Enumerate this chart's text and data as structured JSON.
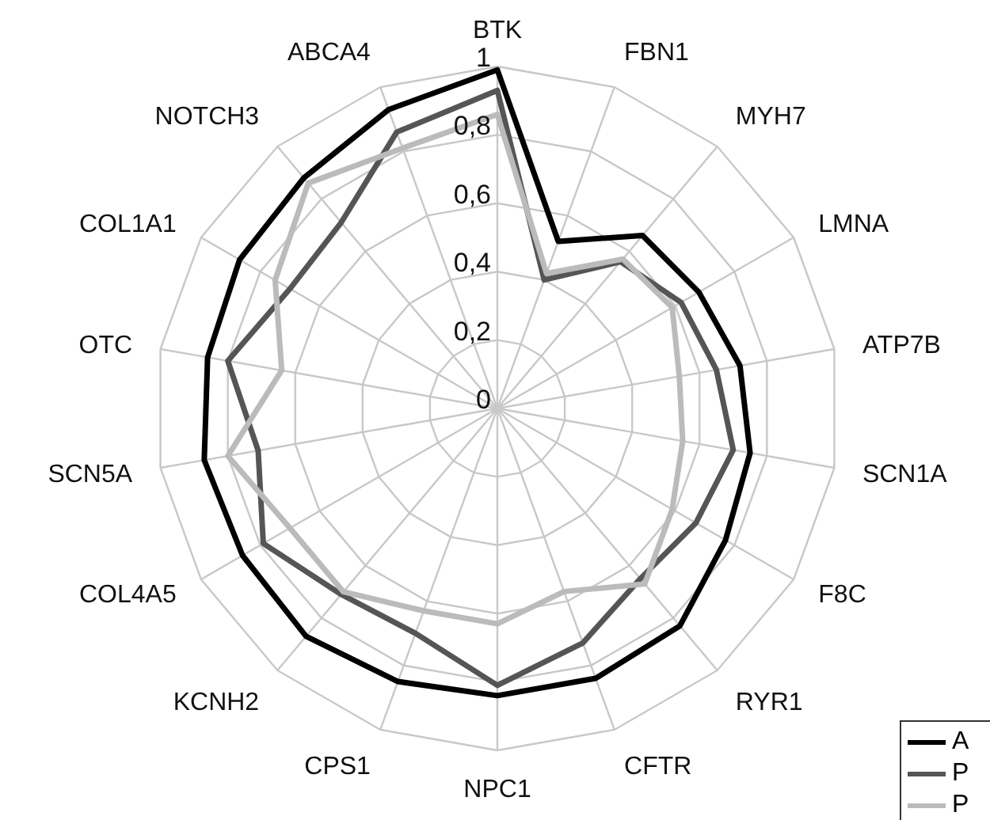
{
  "chart_data": {
    "type": "radar",
    "categories": [
      "BTK",
      "FBN1",
      "MYH7",
      "LMNA",
      "ATP7B",
      "SCN1A",
      "F8C",
      "RYR1",
      "CFTR",
      "NPC1",
      "CPS1",
      "KCNH2",
      "COL4A5",
      "SCN5A",
      "OTC",
      "COL1A1",
      "NOTCH3",
      "ABCA4"
    ],
    "series": [
      {
        "name": "A",
        "color": "#000000",
        "values": [
          0.99,
          0.52,
          0.66,
          0.68,
          0.72,
          0.75,
          0.77,
          0.83,
          0.84,
          0.84,
          0.85,
          0.87,
          0.86,
          0.87,
          0.86,
          0.87,
          0.88,
          0.93
        ]
      },
      {
        "name": "P",
        "color": "#555555",
        "values": [
          0.93,
          0.4,
          0.56,
          0.62,
          0.65,
          0.7,
          0.67,
          0.65,
          0.73,
          0.81,
          0.7,
          0.71,
          0.79,
          0.71,
          0.8,
          0.7,
          0.71,
          0.86
        ]
      },
      {
        "name": "P",
        "color": "#bbbbbb",
        "values": [
          0.86,
          0.42,
          0.57,
          0.59,
          0.54,
          0.55,
          0.59,
          0.67,
          0.57,
          0.63,
          0.63,
          0.7,
          0.7,
          0.8,
          0.64,
          0.75,
          0.86,
          0.81
        ]
      }
    ],
    "ylim": [
      0,
      1
    ],
    "yticks": [
      0,
      {
        "value": 0.2,
        "label": "0,2"
      },
      {
        "value": 0.4,
        "label": "0,4"
      },
      {
        "value": 0.6,
        "label": "0,6"
      },
      {
        "value": 0.8,
        "label": "0,8"
      },
      1
    ],
    "grid": true,
    "legend": "bottom right"
  }
}
